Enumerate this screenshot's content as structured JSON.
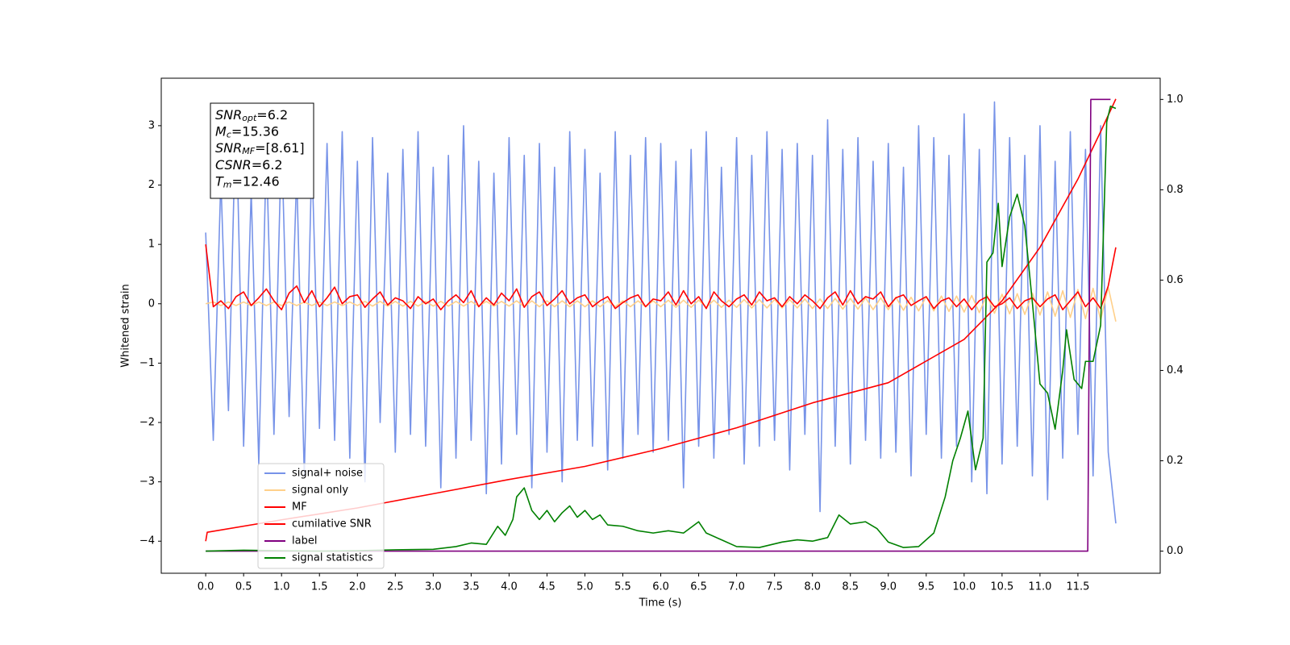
{
  "chart_data": {
    "type": "line",
    "xlabel": "Time (s)",
    "ylabel": "Whitened strain",
    "xlim": [
      -0.586,
      12.585
    ],
    "ylim": [
      -4.54,
      3.8
    ],
    "y2lim": [
      -0.049,
      1.047
    ],
    "xticks": [
      {
        "value": 0,
        "label": "0.0"
      },
      0.5,
      {
        "value": 1,
        "label": "1.0"
      },
      1.5,
      {
        "value": 2,
        "label": "2.0"
      },
      2.5,
      {
        "value": 3,
        "label": "3.0"
      },
      3.5,
      {
        "value": 4,
        "label": "4.0"
      },
      4.5,
      {
        "value": 5,
        "label": "5.0"
      },
      5.5,
      {
        "value": 6,
        "label": "6.0"
      },
      6.5,
      {
        "value": 7,
        "label": "7.0"
      },
      7.5,
      {
        "value": 8,
        "label": "8.0"
      },
      8.5,
      {
        "value": 9,
        "label": "9.0"
      },
      9.5,
      {
        "value": 10,
        "label": "10.0"
      },
      10.5,
      {
        "value": 11,
        "label": "11.0"
      },
      11.5
    ],
    "yticks": [
      {
        "value": -4,
        "label": "−4"
      },
      {
        "value": -3,
        "label": "−3"
      },
      {
        "value": -2,
        "label": "−2"
      },
      {
        "value": -1,
        "label": "−1"
      },
      0,
      1,
      2,
      3
    ],
    "y2ticks": [
      {
        "value": 0,
        "label": "0.0"
      },
      0.2,
      0.4,
      0.6,
      0.8,
      {
        "value": 1,
        "label": "1.0"
      }
    ],
    "legend": "lower left",
    "annotation": [
      {
        "main": "SNR",
        "sub": "opt",
        "text": "=6.2"
      },
      {
        "main": "M",
        "sub": "c",
        "text": "=15.36"
      },
      {
        "main": "SNR",
        "sub": "MF",
        "text": "=[8.61]"
      },
      {
        "main": "CSNR",
        "text": "=6.2"
      },
      {
        "main": "T",
        "sub": "m",
        "text": "=12.46"
      }
    ],
    "x": [
      0,
      0.1,
      0.2,
      0.3,
      0.4,
      0.5,
      0.6,
      0.7,
      0.8,
      0.9,
      1,
      1.1,
      1.2,
      1.3,
      1.4,
      1.5,
      1.6,
      1.7,
      1.8,
      1.9,
      2,
      2.1,
      2.2,
      2.3,
      2.4,
      2.5,
      2.6,
      2.7,
      2.8,
      2.9,
      3,
      3.1,
      3.2,
      3.3,
      3.4,
      3.5,
      3.6,
      3.7,
      3.8,
      3.9,
      4,
      4.1,
      4.2,
      4.3,
      4.4,
      4.5,
      4.6,
      4.7,
      4.8,
      4.9,
      5,
      5.1,
      5.2,
      5.3,
      5.4,
      5.5,
      5.6,
      5.7,
      5.8,
      5.9,
      6,
      6.1,
      6.2,
      6.3,
      6.4,
      6.5,
      6.6,
      6.7,
      6.8,
      6.9,
      7,
      7.1,
      7.2,
      7.3,
      7.4,
      7.5,
      7.6,
      7.7,
      7.8,
      7.9,
      8,
      8.1,
      8.2,
      8.3,
      8.4,
      8.5,
      8.6,
      8.7,
      8.8,
      8.9,
      9,
      9.1,
      9.2,
      9.3,
      9.4,
      9.5,
      9.6,
      9.7,
      9.8,
      9.9,
      10,
      10.1,
      10.2,
      10.3,
      10.4,
      10.5,
      10.6,
      10.7,
      10.8,
      10.9,
      11,
      11.1,
      11.2,
      11.3,
      11.4,
      11.5,
      11.6,
      11.7,
      11.8,
      11.9,
      12
    ],
    "series": [
      {
        "name": "signal+ noise",
        "color": "#7793e8",
        "values": [
          1.2,
          -2.3,
          2.1,
          -1.8,
          3.3,
          -2.4,
          1.9,
          -2.7,
          2.6,
          -2.2,
          2.8,
          -1.9,
          2.2,
          -2.9,
          2.5,
          -2.1,
          2.7,
          -2.3,
          2.9,
          -2.6,
          2.4,
          -3.0,
          2.8,
          -2.0,
          2.2,
          -2.5,
          2.6,
          -2.2,
          2.9,
          -2.4,
          2.3,
          -3.1,
          2.5,
          -2.6,
          3.0,
          -2.3,
          2.4,
          -3.2,
          2.2,
          -2.7,
          2.8,
          -2.2,
          2.5,
          -3.1,
          2.7,
          -2.5,
          2.3,
          -3.0,
          2.9,
          -2.3,
          2.6,
          -2.4,
          2.2,
          -2.8,
          2.9,
          -2.6,
          2.5,
          -2.2,
          2.8,
          -2.5,
          2.7,
          -2.3,
          2.4,
          -3.1,
          2.6,
          -2.4,
          2.9,
          -2.6,
          2.3,
          -2.2,
          2.8,
          -2.7,
          2.5,
          -2.4,
          2.9,
          -2.3,
          2.6,
          -2.8,
          2.7,
          -2.2,
          2.5,
          -3.5,
          3.1,
          -2.4,
          2.6,
          -2.7,
          2.8,
          -2.3,
          2.4,
          -2.6,
          2.7,
          -2.5,
          2.3,
          -2.9,
          3.0,
          -2.2,
          2.8,
          -2.6,
          2.5,
          -2.4,
          3.2,
          -3.0,
          2.6,
          -3.2,
          3.4,
          -2.7,
          2.8,
          -2.4,
          2.5,
          -2.9,
          3.0,
          -3.3,
          2.4,
          -2.6,
          2.9,
          -2.2,
          2.6,
          -2.9,
          3.0,
          -2.5,
          -3.7
        ]
      },
      {
        "name": "signal only",
        "color": "#ffd08a",
        "values": [
          0.0,
          0.03,
          -0.03,
          0.03,
          -0.03,
          0.03,
          -0.03,
          0.03,
          -0.03,
          0.03,
          -0.03,
          0.03,
          -0.03,
          0.03,
          -0.03,
          0.03,
          -0.03,
          0.03,
          -0.03,
          0.03,
          -0.03,
          0.04,
          -0.04,
          0.04,
          -0.04,
          0.04,
          -0.04,
          0.04,
          -0.04,
          0.04,
          -0.04,
          0.04,
          -0.04,
          0.04,
          -0.04,
          0.04,
          -0.04,
          0.04,
          -0.04,
          0.04,
          -0.04,
          0.05,
          -0.05,
          0.05,
          -0.05,
          0.05,
          -0.05,
          0.05,
          -0.05,
          0.05,
          -0.05,
          0.05,
          -0.05,
          0.05,
          -0.05,
          0.05,
          -0.05,
          0.05,
          -0.05,
          0.05,
          -0.05,
          0.06,
          -0.06,
          0.06,
          -0.06,
          0.06,
          -0.06,
          0.06,
          -0.06,
          0.06,
          -0.06,
          0.07,
          -0.07,
          0.07,
          -0.07,
          0.07,
          -0.07,
          0.07,
          -0.07,
          0.08,
          -0.08,
          0.08,
          -0.08,
          0.09,
          -0.09,
          0.09,
          -0.09,
          0.1,
          -0.1,
          0.1,
          -0.1,
          0.11,
          -0.11,
          0.11,
          -0.12,
          0.12,
          -0.12,
          0.13,
          -0.13,
          0.13,
          -0.14,
          0.14,
          -0.15,
          0.15,
          -0.16,
          0.16,
          -0.17,
          0.17,
          -0.18,
          0.18,
          -0.19,
          0.2,
          -0.21,
          0.22,
          -0.23,
          0.24,
          -0.25,
          0.26,
          -0.27,
          0.28,
          -0.3
        ]
      },
      {
        "name": "MF",
        "color": "#ff0000",
        "values": [
          1.0,
          -0.05,
          0.05,
          -0.08,
          0.12,
          0.2,
          -0.03,
          0.1,
          0.25,
          0.05,
          -0.1,
          0.18,
          0.3,
          0.02,
          0.22,
          -0.05,
          0.1,
          0.28,
          0.0,
          0.12,
          0.15,
          -0.06,
          0.08,
          0.2,
          -0.02,
          0.1,
          0.05,
          -0.08,
          0.12,
          0.0,
          0.08,
          -0.1,
          0.05,
          0.15,
          0.02,
          0.22,
          -0.05,
          0.1,
          -0.02,
          0.18,
          0.05,
          0.25,
          -0.06,
          0.12,
          0.2,
          -0.03,
          0.08,
          0.22,
          0.0,
          0.1,
          0.15,
          -0.05,
          0.05,
          0.12,
          -0.08,
          0.02,
          0.1,
          0.15,
          -0.05,
          0.08,
          0.05,
          0.2,
          -0.02,
          0.22,
          0.0,
          0.12,
          -0.08,
          0.2,
          0.05,
          -0.05,
          0.08,
          0.15,
          -0.02,
          0.2,
          0.05,
          0.1,
          -0.05,
          0.12,
          0.0,
          0.15,
          0.05,
          -0.08,
          0.1,
          0.2,
          -0.02,
          0.22,
          0.0,
          0.12,
          0.08,
          0.2,
          -0.05,
          0.1,
          0.15,
          -0.03,
          0.05,
          0.12,
          -0.08,
          0.05,
          0.1,
          -0.05,
          0.08,
          -0.1,
          0.05,
          0.12,
          -0.05,
          0.0,
          0.1,
          -0.08,
          0.05,
          0.1,
          -0.05,
          0.08,
          0.15,
          -0.1,
          0.05,
          0.2,
          -0.05,
          0.1,
          -0.08,
          0.3,
          0.95
        ]
      },
      {
        "name": "cumilative SNR",
        "color": "#ff0000",
        "x": [
          0,
          0.02,
          1,
          2,
          3,
          4,
          5,
          6,
          7,
          8,
          9,
          10,
          10.5,
          11,
          11.5,
          11.8,
          12
        ],
        "values": [
          -4.0,
          -3.85,
          -3.64,
          -3.44,
          -3.2,
          -2.96,
          -2.74,
          -2.44,
          -2.09,
          -1.67,
          -1.33,
          -0.6,
          0.05,
          0.95,
          2.1,
          2.9,
          3.45
        ]
      },
      {
        "name": "label",
        "color": "#800080",
        "axis": "y2",
        "x": [
          0,
          11.63,
          11.67,
          11.93
        ],
        "values": [
          0,
          0,
          1,
          1
        ]
      },
      {
        "name": "signal statistics",
        "color": "#008000",
        "axis": "y2",
        "x": [
          0,
          0.5,
          1,
          1.5,
          2,
          2.5,
          3,
          3.3,
          3.5,
          3.7,
          3.85,
          3.95,
          4.05,
          4.1,
          4.2,
          4.3,
          4.4,
          4.5,
          4.6,
          4.7,
          4.8,
          4.9,
          5,
          5.1,
          5.2,
          5.3,
          5.5,
          5.7,
          5.9,
          6.1,
          6.3,
          6.5,
          6.6,
          6.8,
          7,
          7.3,
          7.6,
          7.8,
          8,
          8.2,
          8.35,
          8.5,
          8.7,
          8.85,
          9,
          9.2,
          9.4,
          9.6,
          9.75,
          9.85,
          9.95,
          10.05,
          10.15,
          10.25,
          10.3,
          10.38,
          10.45,
          10.5,
          10.6,
          10.7,
          10.8,
          10.9,
          11,
          11.1,
          11.2,
          11.3,
          11.35,
          11.45,
          11.55,
          11.6,
          11.7,
          11.8,
          11.88,
          11.93,
          12
        ],
        "values": [
          0,
          0.002,
          0.001,
          0,
          0.001,
          0.003,
          0.004,
          0.01,
          0.018,
          0.015,
          0.055,
          0.035,
          0.07,
          0.12,
          0.14,
          0.09,
          0.07,
          0.09,
          0.065,
          0.085,
          0.1,
          0.075,
          0.09,
          0.07,
          0.08,
          0.058,
          0.055,
          0.045,
          0.04,
          0.045,
          0.04,
          0.065,
          0.04,
          0.025,
          0.01,
          0.008,
          0.02,
          0.025,
          0.022,
          0.03,
          0.08,
          0.06,
          0.065,
          0.05,
          0.02,
          0.008,
          0.01,
          0.04,
          0.12,
          0.2,
          0.25,
          0.31,
          0.18,
          0.25,
          0.64,
          0.66,
          0.77,
          0.63,
          0.74,
          0.79,
          0.72,
          0.55,
          0.37,
          0.35,
          0.27,
          0.4,
          0.49,
          0.38,
          0.36,
          0.42,
          0.42,
          0.5,
          0.95,
          0.985,
          0.98
        ]
      }
    ]
  }
}
